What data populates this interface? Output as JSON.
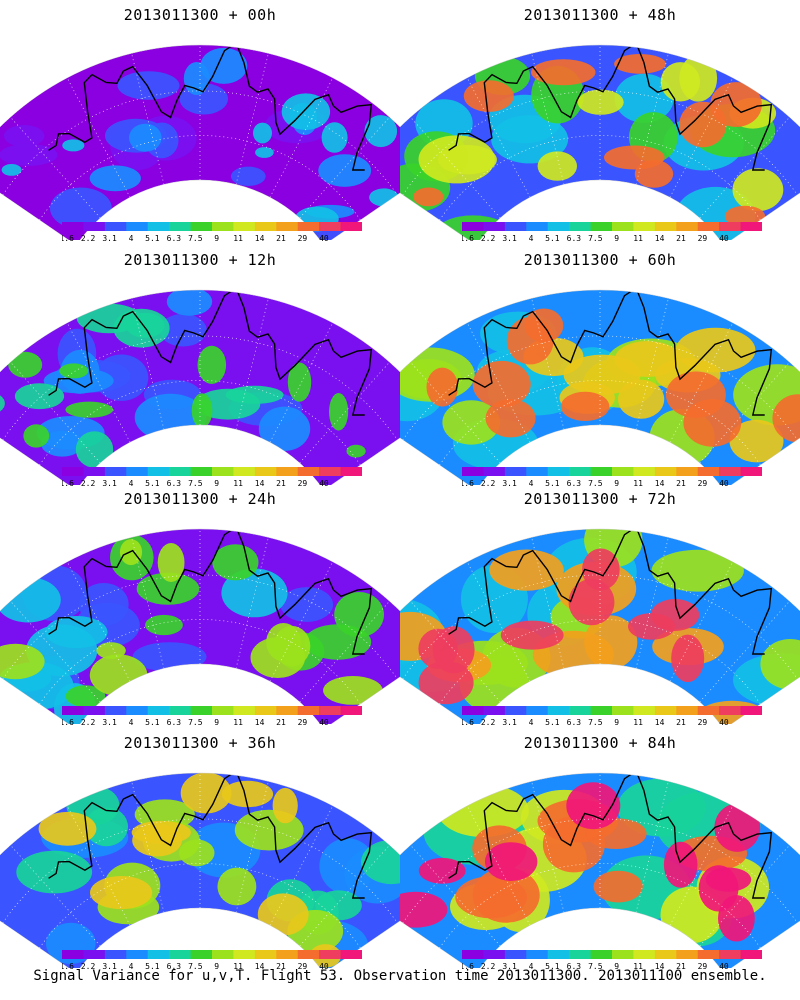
{
  "panels": [
    {
      "title": "2013011300 + 00h",
      "intensity": 0.05
    },
    {
      "title": "2013011300 + 48h",
      "intensity": 0.62
    },
    {
      "title": "2013011300 + 12h",
      "intensity": 0.22
    },
    {
      "title": "2013011300 + 60h",
      "intensity": 0.7
    },
    {
      "title": "2013011300 + 24h",
      "intensity": 0.32
    },
    {
      "title": "2013011300 + 72h",
      "intensity": 0.78
    },
    {
      "title": "2013011300 + 36h",
      "intensity": 0.45
    },
    {
      "title": "2013011300 + 84h",
      "intensity": 0.86
    }
  ],
  "colorbar": {
    "labels": [
      "1.6",
      "2.2",
      "3.1",
      "4",
      "5.1",
      "6.3",
      "7.5",
      "9",
      "11",
      "14",
      "21",
      "29",
      "40"
    ],
    "colors": [
      "#8a00e0",
      "#7a10f0",
      "#3a55ff",
      "#1b8cff",
      "#12c0e6",
      "#18d49a",
      "#3ad22a",
      "#9ce21c",
      "#cfe820",
      "#e9c81a",
      "#f3a01c",
      "#f46d2e",
      "#ee3d5e",
      "#f0167a"
    ]
  },
  "footer": "Signal Variance for u,v,T. Flight 53. Observation time 2013011300. 2013011100 ensemble."
}
